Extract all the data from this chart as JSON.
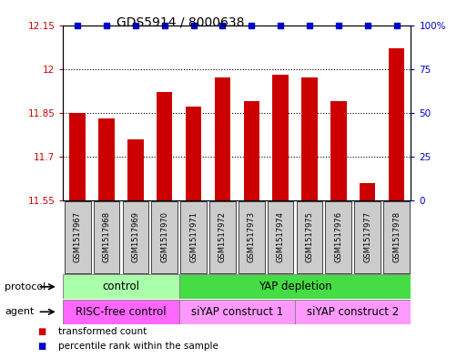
{
  "title": "GDS5914 / 8000638",
  "samples": [
    "GSM1517967",
    "GSM1517968",
    "GSM1517969",
    "GSM1517970",
    "GSM1517971",
    "GSM1517972",
    "GSM1517973",
    "GSM1517974",
    "GSM1517975",
    "GSM1517976",
    "GSM1517977",
    "GSM1517978"
  ],
  "transformed_counts": [
    11.85,
    11.83,
    11.76,
    11.92,
    11.87,
    11.97,
    11.89,
    11.98,
    11.97,
    11.89,
    11.61,
    12.07
  ],
  "percentile_ranks": [
    100,
    100,
    100,
    100,
    100,
    100,
    100,
    100,
    100,
    100,
    100,
    100
  ],
  "bar_color": "#cc0000",
  "dot_color": "#0000cc",
  "ylim_left": [
    11.55,
    12.15
  ],
  "ylim_right": [
    0,
    100
  ],
  "yticks_left": [
    11.55,
    11.7,
    11.85,
    12.0,
    12.15
  ],
  "ytick_labels_left": [
    "11.55",
    "11.7",
    "11.85",
    "12",
    "12.15"
  ],
  "yticks_right": [
    0,
    25,
    50,
    75,
    100
  ],
  "ytick_labels_right": [
    "0",
    "25",
    "50",
    "75",
    "100%"
  ],
  "protocol_labels": [
    {
      "label": "control",
      "start": 0,
      "end": 3,
      "color": "#aaffaa"
    },
    {
      "label": "YAP depletion",
      "start": 4,
      "end": 11,
      "color": "#44dd44"
    }
  ],
  "agent_labels": [
    {
      "label": "RISC-free control",
      "start": 0,
      "end": 3,
      "color": "#ff66ff"
    },
    {
      "label": "siYAP construct 1",
      "start": 4,
      "end": 7,
      "color": "#ff99ff"
    },
    {
      "label": "siYAP construct 2",
      "start": 8,
      "end": 11,
      "color": "#ff99ff"
    }
  ],
  "legend_items": [
    {
      "label": "transformed count",
      "color": "#cc0000"
    },
    {
      "label": "percentile rank within the sample",
      "color": "#0000cc"
    }
  ],
  "bg_color": "#ffffff",
  "left_tick_color": "#cc0000",
  "right_tick_color": "#0000cc",
  "xtick_bg_color": "#cccccc",
  "protocol_border_color": "#888888",
  "agent_border_color": "#888888"
}
